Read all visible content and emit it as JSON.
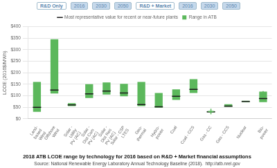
{
  "chart_data": {
    "type": "bar",
    "title": "2018 ATB LCOE range by technology for 2016 based on R&D + Market financial assumptions",
    "subtitle": "Source: National Renewable Energy Laboratory Annual Technology Baseline (2018).  http://atb.nrel.gov",
    "annotations": [
      "R&D Only",
      "2016",
      "2030",
      "2050",
      "R&D + Market",
      "2016",
      "2030",
      "2050"
    ],
    "y_label": "LCOE (2016$/MWh)",
    "categories": [
      "Land-\nbased\nWind",
      "Offshore\nWind",
      "Solar -\nUtility\nPV (AC)",
      "Solar -\nDist Com\nPV (AC)",
      "Solar -\nDist Res\nPV (AC)",
      "Solar - CSP\nLTES",
      "Geo-\nthermal",
      "Hydro-\npower",
      "Coal",
      "Coal - CCS",
      "Gas - CC",
      "Gas - CCS",
      "Nuclear",
      "Bio-\npower"
    ],
    "series": [
      {
        "name": "Range in ATB",
        "type": "bar",
        "color": "#5cb85c",
        "low": [
          30,
          110,
          55,
          90,
          105,
          98,
          55,
          48,
          82,
          112,
          28,
          52,
          72,
          72
        ],
        "high": [
          160,
          345,
          68,
          150,
          158,
          152,
          160,
          112,
          128,
          172,
          33,
          63,
          78,
          118
        ]
      },
      {
        "name": "Most representative value for recent or\nnear-future plants",
        "type": "line",
        "marker": "dash",
        "color": "#1a1a1a",
        "values": [
          50,
          125,
          60,
          108,
          120,
          112,
          62,
          52,
          98,
          128,
          30,
          55,
          75,
          88
        ]
      },
      {
        "type": "line",
        "marker": "plus",
        "color": "#5cb85c",
        "values": [
          null,
          null,
          null,
          null,
          null,
          null,
          null,
          null,
          null,
          null,
          32,
          null,
          null,
          108
        ]
      }
    ],
    "ylim": [
      0,
      400
    ],
    "yticks": [
      {
        "value": 0,
        "label": "$0"
      },
      {
        "value": 50,
        "label": "$50"
      },
      {
        "value": 100,
        "label": "$100"
      },
      {
        "value": 150,
        "label": "$150"
      },
      {
        "value": 200,
        "label": "$200"
      },
      {
        "value": 250,
        "label": "$250"
      },
      {
        "value": 300,
        "label": "$300"
      },
      {
        "value": 350,
        "label": "$350"
      },
      {
        "value": 400,
        "label": "$400"
      }
    ],
    "grid": true,
    "legend": "top"
  }
}
